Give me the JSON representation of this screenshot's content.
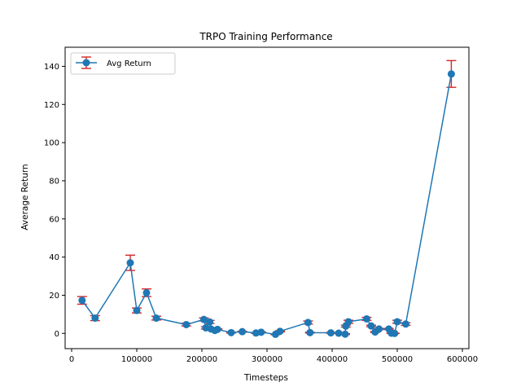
{
  "chart_data": {
    "type": "line",
    "title": "TRPO Training Performance",
    "xlabel": "Timesteps",
    "ylabel": "Average Return",
    "xlim": [
      -10000,
      610000
    ],
    "ylim": [
      -8,
      150
    ],
    "xticks": [
      0,
      100000,
      200000,
      300000,
      400000,
      500000,
      600000
    ],
    "yticks": [
      0,
      20,
      40,
      60,
      80,
      100,
      120,
      140
    ],
    "grid": false,
    "legend_position": "upper-left",
    "series": [
      {
        "name": "Avg Return",
        "color": "#1f77b4",
        "errorbar_color": "#d62728",
        "x": [
          16000,
          36000,
          90000,
          100000,
          115000,
          130000,
          176000,
          203000,
          206000,
          212000,
          214000,
          220000,
          224000,
          245000,
          262000,
          283000,
          291000,
          313000,
          320000,
          363000,
          366000,
          398000,
          410000,
          420000,
          421000,
          425000,
          453000,
          460000,
          466000,
          472000,
          487000,
          491000,
          496000,
          500000,
          513000,
          583000
        ],
        "y": [
          17.3,
          8.0,
          37.0,
          12.0,
          21.3,
          8.0,
          4.6,
          7.3,
          2.9,
          6.0,
          2.3,
          1.5,
          2.1,
          0.4,
          0.9,
          0.2,
          0.6,
          -0.5,
          1.1,
          5.7,
          0.4,
          0.3,
          0.1,
          -0.4,
          3.8,
          6.1,
          7.6,
          3.9,
          0.7,
          2.3,
          2.3,
          0.1,
          0.0,
          6.1,
          4.9,
          136.0
        ],
        "err": [
          2.0,
          1.3,
          4.0,
          1.3,
          2.0,
          1.0,
          0.7,
          0.8,
          0.6,
          0.8,
          0.4,
          0.3,
          0.3,
          0.2,
          0.2,
          0.2,
          0.2,
          0.2,
          0.3,
          0.8,
          0.2,
          0.2,
          0.1,
          0.2,
          0.5,
          0.8,
          0.8,
          0.4,
          0.2,
          0.3,
          0.3,
          0.1,
          0.1,
          0.8,
          0.7,
          7.0
        ]
      }
    ]
  }
}
